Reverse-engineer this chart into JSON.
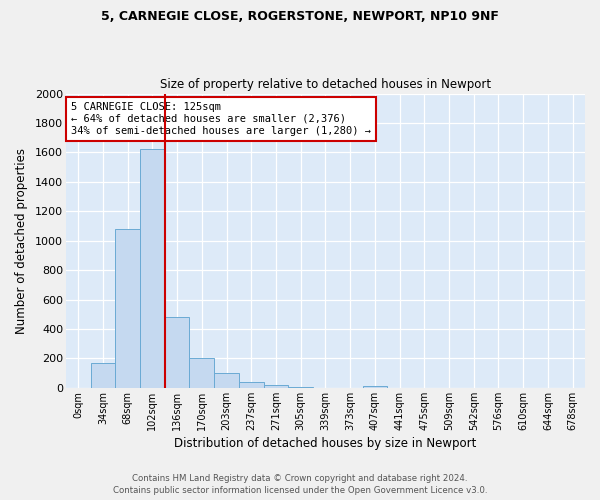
{
  "title_line1": "5, CARNEGIE CLOSE, ROGERSTONE, NEWPORT, NP10 9NF",
  "title_line2": "Size of property relative to detached houses in Newport",
  "xlabel": "Distribution of detached houses by size in Newport",
  "ylabel": "Number of detached properties",
  "bar_labels": [
    "0sqm",
    "34sqm",
    "68sqm",
    "102sqm",
    "136sqm",
    "170sqm",
    "203sqm",
    "237sqm",
    "271sqm",
    "305sqm",
    "339sqm",
    "373sqm",
    "407sqm",
    "441sqm",
    "475sqm",
    "509sqm",
    "542sqm",
    "576sqm",
    "610sqm",
    "644sqm",
    "678sqm"
  ],
  "bar_values": [
    0,
    170,
    1080,
    1620,
    480,
    200,
    100,
    42,
    18,
    5,
    2,
    0,
    15,
    0,
    0,
    0,
    0,
    0,
    0,
    0,
    0
  ],
  "bar_color": "#c5d9f0",
  "bar_edge_color": "#6aaad4",
  "vline_color": "#cc0000",
  "annotation_text": "5 CARNEGIE CLOSE: 125sqm\n← 64% of detached houses are smaller (2,376)\n34% of semi-detached houses are larger (1,280) →",
  "annotation_box_color": "#ffffff",
  "annotation_box_edge": "#cc0000",
  "ylim": [
    0,
    2000
  ],
  "yticks": [
    0,
    200,
    400,
    600,
    800,
    1000,
    1200,
    1400,
    1600,
    1800,
    2000
  ],
  "bg_color": "#ddeaf8",
  "grid_color": "#ffffff",
  "footer_line1": "Contains HM Land Registry data © Crown copyright and database right 2024.",
  "footer_line2": "Contains public sector information licensed under the Open Government Licence v3.0."
}
